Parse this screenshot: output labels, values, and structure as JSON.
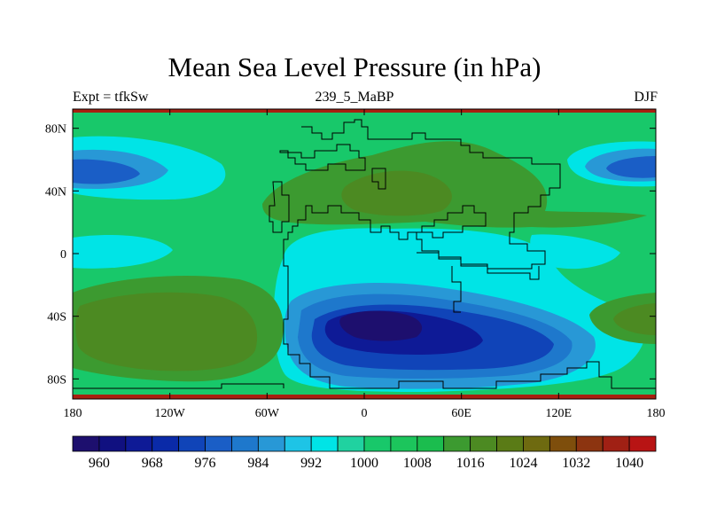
{
  "chart_data": {
    "type": "heatmap",
    "title": "Mean Sea Level Pressure (in hPa)",
    "subtitle_left": "Expt = tfkSw",
    "subtitle_center": "239_5_MaBP",
    "subtitle_right": "DJF",
    "variable": "Mean Sea Level Pressure",
    "units": "hPa",
    "x_axis": {
      "range": [
        -180,
        180
      ],
      "ticks": [
        -180,
        -120,
        -60,
        0,
        60,
        120,
        180
      ],
      "tick_labels": [
        "180",
        "120W",
        "60W",
        "0",
        "60E",
        "120E",
        "180"
      ]
    },
    "y_axis": {
      "range": [
        -90,
        90
      ],
      "ticks": [
        -80,
        -40,
        0,
        40,
        80
      ],
      "tick_labels": [
        "80S",
        "40S",
        "0",
        "40N",
        "80N"
      ]
    },
    "colorbar": {
      "levels": [
        956,
        960,
        964,
        968,
        972,
        976,
        980,
        984,
        988,
        992,
        996,
        1000,
        1004,
        1008,
        1012,
        1016,
        1020,
        1024,
        1028,
        1032,
        1036,
        1040,
        1044
      ],
      "labels": [
        "960",
        "968",
        "976",
        "984",
        "992",
        "1000",
        "1008",
        "1016",
        "1024",
        "1032",
        "1040"
      ],
      "colors": [
        "#1d0f6e",
        "#101080",
        "#0e1a96",
        "#0a2aa8",
        "#1044b8",
        "#1a5ec6",
        "#1e78cc",
        "#2898d6",
        "#1ec4e6",
        "#00e4e6",
        "#20d2a0",
        "#18c86a",
        "#1cc55c",
        "#1bbd4e",
        "#3c9a30",
        "#4c8a22",
        "#5a7b16",
        "#6e6a10",
        "#7e4e0c",
        "#8c3410",
        "#a02014",
        "#b81414"
      ]
    },
    "pressure_field": [
      {
        "region": "subtropical high (S Pacific)",
        "center": [
          -140,
          -40
        ],
        "value": 1022
      },
      {
        "region": "Eurasian high",
        "center": [
          40,
          40
        ],
        "value": 1018
      },
      {
        "region": "southern low",
        "center": [
          20,
          -45
        ],
        "value": 962
      },
      {
        "region": "N Pacific low",
        "center": [
          -160,
          50
        ],
        "value": 980
      },
      {
        "region": "NW Pacific low",
        "center": [
          170,
          50
        ],
        "value": 980
      },
      {
        "region": "Southern Ocean high",
        "center": [
          165,
          -45
        ],
        "value": 1016
      },
      {
        "region": "equatorial trough",
        "center": [
          -170,
          0
        ],
        "value": 998
      }
    ]
  }
}
